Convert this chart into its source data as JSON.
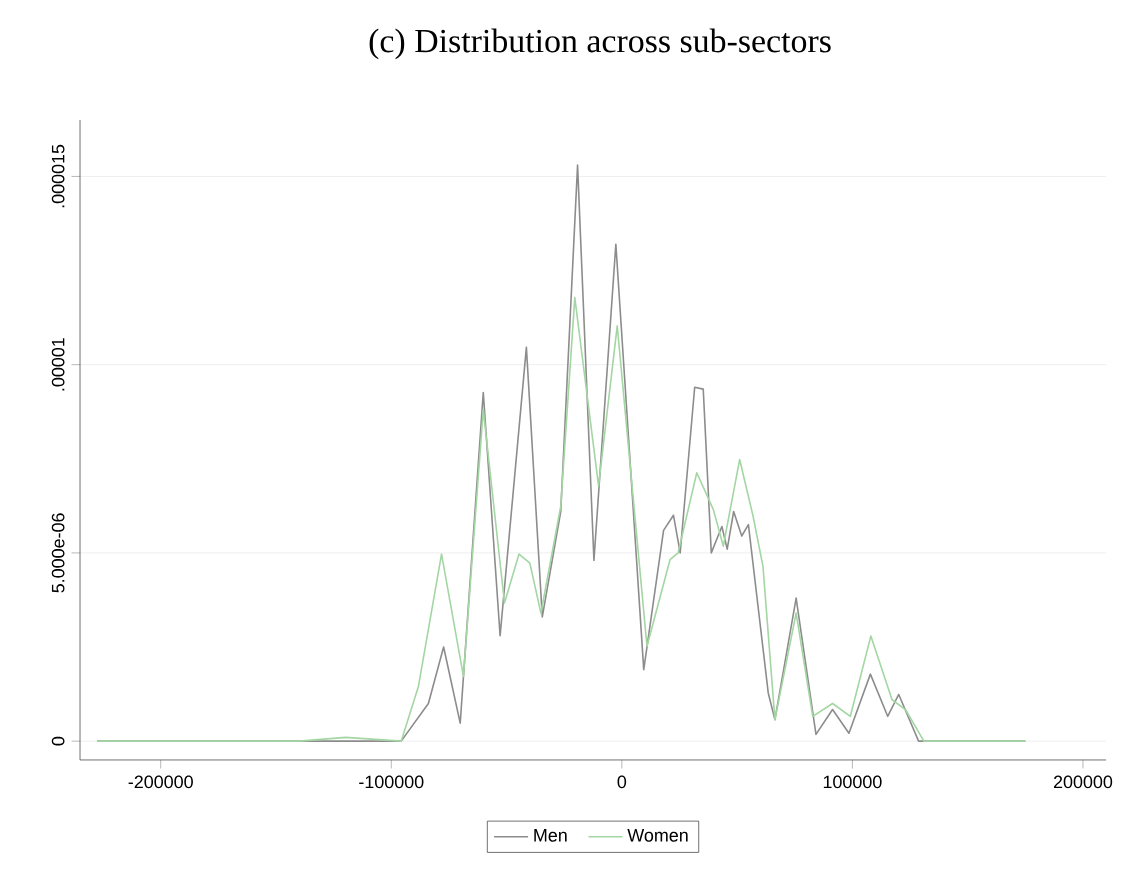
{
  "chart_data": {
    "type": "line",
    "title": "(c) Distribution across sub-sectors",
    "xlim": [
      -235000,
      210000
    ],
    "ylim": [
      -5e-07,
      1.65e-05
    ],
    "xticks": [
      -200000,
      -100000,
      0,
      100000,
      200000
    ],
    "yticks": [
      {
        "value": 0,
        "label": "0"
      },
      {
        "value": 5e-06,
        "label": "5.000e-06"
      },
      {
        "value": 1e-05,
        "label": ".00001"
      },
      {
        "value": 1.5e-05,
        "label": ".000015"
      }
    ],
    "grid": "y",
    "legend": "bottom",
    "marker": "none",
    "line_style": "solid",
    "series": [
      {
        "name": "Men",
        "color": "#8c8c8c",
        "x": [
          -227600,
          -140000,
          -95700,
          -83900,
          -77300,
          -70100,
          -60100,
          -52800,
          -41400,
          -34500,
          -26500,
          -19200,
          -12100,
          -2600,
          9500,
          18100,
          22400,
          25300,
          31600,
          35300,
          38800,
          43400,
          45700,
          48500,
          52000,
          54900,
          63500,
          66400,
          75600,
          84200,
          91400,
          98500,
          107800,
          115300,
          120100,
          128700,
          175000
        ],
        "values": [
          0,
          0,
          0,
          1e-06,
          2.5e-06,
          4.8e-07,
          9.26e-06,
          2.8e-06,
          1.046e-05,
          3.3e-06,
          6.1e-06,
          1.53e-05,
          4.8e-06,
          1.32e-05,
          1.9e-06,
          5.6e-06,
          6e-06,
          5e-06,
          9.4e-06,
          9.35e-06,
          5e-06,
          5.7e-06,
          5.1e-06,
          6.1e-06,
          5.45e-06,
          5.75e-06,
          1.28e-06,
          5.7e-07,
          3.8e-06,
          1.8e-07,
          8.4e-07,
          2.1e-07,
          1.78e-06,
          6.6e-07,
          1.24e-06,
          0,
          0
        ]
      },
      {
        "name": "Women",
        "color": "#a3d6a3",
        "x": [
          -227600,
          -140000,
          -119800,
          -95700,
          -88200,
          -78200,
          -68700,
          -60100,
          -50900,
          -44600,
          -39900,
          -35100,
          -26500,
          -20400,
          -10100,
          -2000,
          10900,
          20900,
          24400,
          32500,
          39700,
          44000,
          51100,
          56900,
          61200,
          66400,
          75600,
          82800,
          91400,
          99100,
          108000,
          117200,
          123000,
          131000,
          175000
        ],
        "values": [
          0,
          0,
          1e-07,
          0,
          1.46e-06,
          4.97e-06,
          1.72e-06,
          8.8e-06,
          3.67e-06,
          4.97e-06,
          4.73e-06,
          3.4e-06,
          6.24e-06,
          1.178e-05,
          6.78e-06,
          1.103e-05,
          2.52e-06,
          4.82e-06,
          5e-06,
          7.13e-06,
          6.15e-06,
          5.18e-06,
          7.48e-06,
          5.98e-06,
          4.65e-06,
          5.7e-07,
          3.4e-06,
          6.6e-07,
          1e-06,
          6.6e-07,
          2.79e-06,
          1.1e-06,
          8.4e-07,
          0,
          0
        ]
      }
    ]
  }
}
